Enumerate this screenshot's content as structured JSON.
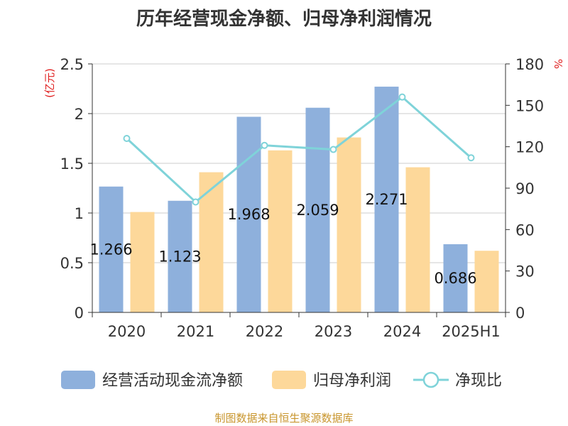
{
  "chart_data": {
    "type": "bar",
    "title": "历年经营现金净额、归母净利润情况",
    "categories": [
      "2020",
      "2021",
      "2022",
      "2023",
      "2024",
      "2025H1"
    ],
    "y_left": {
      "label": "(亿元)",
      "ylim": [
        0,
        2.5
      ],
      "ticks": [
        "0",
        "0.5",
        "1",
        "1.5",
        "2",
        "2.5"
      ],
      "tick_values": [
        0,
        0.5,
        1,
        1.5,
        2,
        2.5
      ]
    },
    "y_right": {
      "label": "%",
      "ylim": [
        0,
        180
      ],
      "ticks": [
        "0",
        "30",
        "60",
        "90",
        "120",
        "150",
        "180"
      ],
      "tick_values": [
        0,
        30,
        60,
        90,
        120,
        150,
        180
      ]
    },
    "series": [
      {
        "name": "经营活动现金流净额",
        "type": "bar",
        "axis": "left",
        "color": "#8eb0dc",
        "values": [
          1.266,
          1.123,
          1.968,
          2.059,
          2.271,
          0.686
        ],
        "labels": [
          "1.266",
          "1.123",
          "1.968",
          "2.059",
          "2.271",
          "0.686"
        ]
      },
      {
        "name": "归母净利润",
        "type": "bar",
        "axis": "left",
        "color": "#fdd89a",
        "values": [
          1.01,
          1.41,
          1.63,
          1.76,
          1.46,
          0.62
        ]
      },
      {
        "name": "净现比",
        "type": "line",
        "axis": "right",
        "color": "#7fd3d9",
        "values": [
          126,
          80,
          121,
          118,
          156,
          112
        ]
      }
    ],
    "grid": true,
    "legend": "bottom"
  },
  "source": "制图数据来自恒生聚源数据库"
}
